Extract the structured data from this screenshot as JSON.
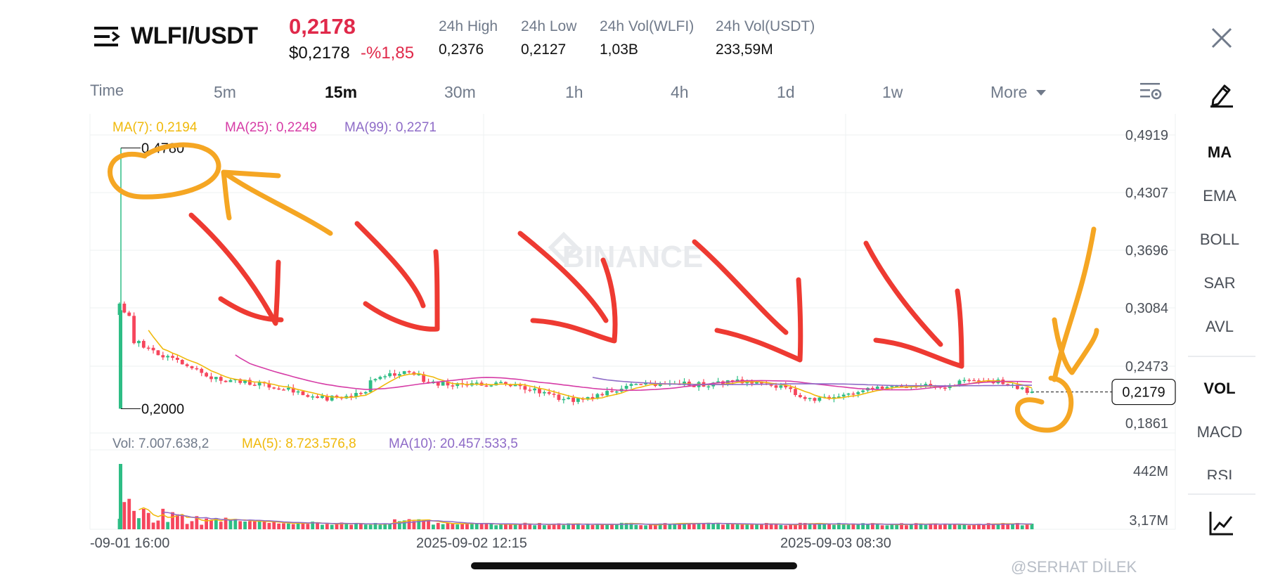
{
  "header": {
    "pair": "WLFI/USDT",
    "last_price": "0,2178",
    "price_usd": "$0,2178",
    "change": "-%1,85",
    "stats": [
      {
        "label": "24h High",
        "value": "0,2376"
      },
      {
        "label": "24h Low",
        "value": "0,2127"
      },
      {
        "label": "24h Vol(WLFI)",
        "value": "1,03B"
      },
      {
        "label": "24h Vol(USDT)",
        "value": "233,59M"
      }
    ]
  },
  "timeframes": {
    "label": "Time",
    "items": [
      "5m",
      "15m",
      "30m",
      "1h",
      "4h",
      "1d",
      "1w"
    ],
    "active": "15m",
    "more": "More"
  },
  "sidebar": {
    "items": [
      "MA",
      "EMA",
      "BOLL",
      "SAR",
      "AVL"
    ],
    "items2": [
      "VOL",
      "MACD",
      "RSI"
    ],
    "active": [
      "MA",
      "VOL"
    ]
  },
  "chart_data": {
    "type": "candlestick",
    "watermark": "BINANCE",
    "ma_legend": [
      {
        "name": "MA(7)",
        "value": "0,2194",
        "color": "#f0b90b"
      },
      {
        "name": "MA(25)",
        "value": "0,2249",
        "color": "#d63ca6"
      },
      {
        "name": "MA(99)",
        "value": "0,2271",
        "color": "#8e6bc7"
      }
    ],
    "price_axis": [
      "0,4919",
      "0,4307",
      "0,3696",
      "0,3084",
      "0,2473",
      "0,1861"
    ],
    "current_price_label": "0,2179",
    "high_marker": "0,4780",
    "low_marker": "0,2000",
    "vol_legend": [
      {
        "name": "Vol",
        "value": "7.007.638,2",
        "color": "#707a8a"
      },
      {
        "name": "MA(5)",
        "value": "8.723.576,8",
        "color": "#f0b90b"
      },
      {
        "name": "MA(10)",
        "value": "20.457.533,5",
        "color": "#8e6bc7"
      }
    ],
    "vol_axis": [
      "442M",
      "3,17M"
    ],
    "x_axis": [
      "-09-01 16:00",
      "2025-09-02 12:15",
      "2025-09-03 08:30"
    ],
    "up_color": "#2ebd85",
    "down_color": "#f6465d"
  },
  "footer": {
    "credit": "@SERHAT DİLEK"
  }
}
